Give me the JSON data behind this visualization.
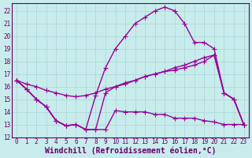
{
  "xlabel": "Windchill (Refroidissement éolien,°C)",
  "xlim": [
    -0.5,
    23.5
  ],
  "ylim": [
    12,
    22.6
  ],
  "yticks": [
    12,
    13,
    14,
    15,
    16,
    17,
    18,
    19,
    20,
    21,
    22
  ],
  "xticks": [
    0,
    1,
    2,
    3,
    4,
    5,
    6,
    7,
    8,
    9,
    10,
    11,
    12,
    13,
    14,
    15,
    16,
    17,
    18,
    19,
    20,
    21,
    22,
    23
  ],
  "bg_color": "#c8ecec",
  "grid_color": "#aad4d4",
  "line_color": "#990099",
  "line_width": 1.0,
  "marker": "+",
  "markersize": 4,
  "markeredgewidth": 0.8,
  "curves": [
    [
      16.5,
      15.8,
      15.0,
      14.4,
      13.3,
      12.9,
      13.0,
      12.6,
      12.6,
      12.6,
      14.1,
      14.0,
      14.0,
      14.0,
      13.8,
      13.8,
      13.5,
      13.5,
      13.5,
      13.3,
      13.2,
      13.0,
      13.0,
      13.0
    ],
    [
      16.5,
      15.8,
      15.0,
      14.4,
      13.3,
      12.9,
      13.0,
      12.6,
      12.6,
      15.5,
      16.0,
      16.3,
      16.5,
      16.8,
      17.0,
      17.2,
      17.3,
      17.5,
      17.7,
      18.0,
      18.5,
      15.5,
      15.0,
      13.0
    ],
    [
      16.5,
      15.8,
      15.0,
      14.4,
      13.3,
      12.9,
      13.0,
      12.6,
      15.3,
      17.5,
      19.0,
      20.0,
      21.0,
      21.5,
      22.0,
      22.3,
      22.0,
      21.0,
      19.5,
      19.5,
      19.0,
      15.5,
      15.0,
      13.0
    ],
    [
      16.5,
      16.2,
      16.0,
      15.7,
      15.5,
      15.3,
      15.2,
      15.3,
      15.5,
      15.8,
      16.0,
      16.2,
      16.5,
      16.8,
      17.0,
      17.2,
      17.5,
      17.7,
      18.0,
      18.3,
      18.5,
      15.5,
      15.0,
      13.0
    ]
  ],
  "font_color": "#660066",
  "tick_fontsize": 5.5,
  "label_fontsize": 7.0,
  "figsize": [
    3.2,
    2.0
  ],
  "dpi": 100
}
